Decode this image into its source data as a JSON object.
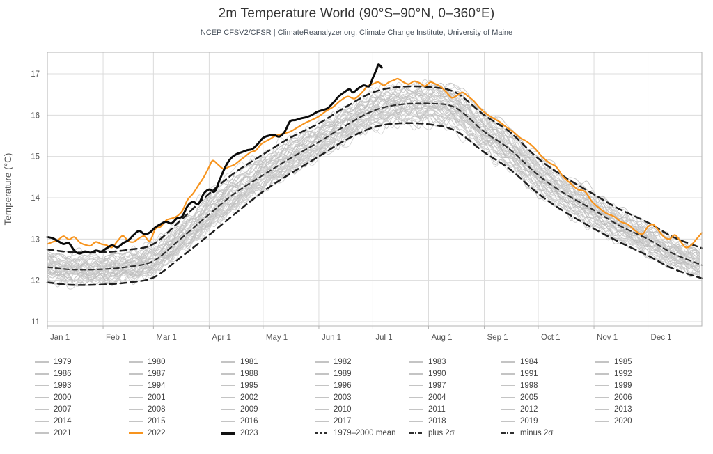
{
  "header": {
    "title": "2m Temperature World (90°S–90°N, 0–360°E)",
    "subtitle": "NCEP CFSV2/CFSR | ClimateReanalyzer.org, Climate Change Institute, University of Maine"
  },
  "colors": {
    "accent_2022": "#F7941E",
    "line_2023": "#0a0a0a",
    "ensemble_grays": [
      "#cfcfcf",
      "#c4c4c4",
      "#d4d4d4",
      "#bdbdbd"
    ],
    "dashed_mean": "#2e2e2e",
    "dashed_sigma": "#1f1f1f",
    "grid": "#dcdcdc",
    "axis_border": "#b3b3b3",
    "axis_text": "#555555"
  },
  "chart_data": {
    "type": "line",
    "title": "2m Temperature World (90°S–90°N, 0–360°E)",
    "subtitle": "NCEP CFSV2/CFSR | ClimateReanalyzer.org, Climate Change Institute, University of Maine",
    "xlabel": "",
    "ylabel": "Temperature (°C)",
    "ylim": [
      10.9,
      17.5
    ],
    "yticks": [
      11,
      12,
      13,
      14,
      15,
      16,
      17
    ],
    "xtick_labels": [
      "Jan 1",
      "Feb 1",
      "Mar 1",
      "Apr 1",
      "May 1",
      "Jun 1",
      "Jul 1",
      "Aug 1",
      "Sep 1",
      "Oct 1",
      "Nov 1",
      "Dec 1"
    ],
    "xtick_days": [
      1,
      32,
      60,
      91,
      121,
      152,
      182,
      213,
      244,
      274,
      305,
      335
    ],
    "grid": true,
    "legend_position": "bottom",
    "ensemble_years": [
      1979,
      1980,
      1981,
      1982,
      1983,
      1984,
      1985,
      1986,
      1987,
      1988,
      1989,
      1990,
      1991,
      1992,
      1993,
      1994,
      1995,
      1996,
      1997,
      1998,
      1999,
      2000,
      2001,
      2002,
      2003,
      2004,
      2005,
      2006,
      2007,
      2008,
      2009,
      2010,
      2011,
      2012,
      2013,
      2014,
      2015,
      2016,
      2017,
      2018,
      2019,
      2020,
      2021
    ],
    "series": [
      {
        "name": "1979-2000 mean",
        "style": "mean",
        "days": [
          1,
          15,
          32,
          46,
          60,
          75,
          91,
          105,
          121,
          136,
          152,
          167,
          182,
          196,
          213,
          228,
          244,
          258,
          274,
          288,
          305,
          319,
          335,
          349,
          365
        ],
        "values": [
          12.32,
          12.26,
          12.27,
          12.33,
          12.47,
          13.0,
          13.6,
          14.1,
          14.55,
          14.95,
          15.35,
          15.75,
          16.1,
          16.25,
          16.28,
          16.18,
          15.6,
          15.18,
          14.55,
          14.12,
          13.7,
          13.33,
          13.0,
          12.65,
          12.37
        ]
      },
      {
        "name": "plus 2σ",
        "style": "sigma",
        "days": [
          1,
          15,
          32,
          46,
          60,
          75,
          91,
          105,
          121,
          136,
          152,
          167,
          182,
          196,
          213,
          228,
          244,
          258,
          274,
          288,
          305,
          319,
          335,
          349,
          365
        ],
        "values": [
          12.75,
          12.68,
          12.68,
          12.74,
          12.88,
          13.45,
          14.1,
          14.6,
          15.05,
          15.45,
          15.8,
          16.2,
          16.55,
          16.68,
          16.68,
          16.55,
          16.0,
          15.6,
          14.95,
          14.52,
          14.08,
          13.73,
          13.4,
          13.05,
          12.78
        ]
      },
      {
        "name": "minus 2σ",
        "style": "sigma",
        "days": [
          1,
          15,
          32,
          46,
          60,
          75,
          91,
          105,
          121,
          136,
          152,
          167,
          182,
          196,
          213,
          228,
          244,
          258,
          274,
          288,
          305,
          319,
          335,
          349,
          365
        ],
        "values": [
          11.95,
          11.89,
          11.9,
          11.95,
          12.07,
          12.55,
          13.1,
          13.6,
          14.15,
          14.58,
          15.0,
          15.4,
          15.7,
          15.8,
          15.78,
          15.62,
          15.1,
          14.7,
          14.1,
          13.68,
          13.25,
          12.93,
          12.6,
          12.28,
          12.05
        ]
      },
      {
        "name": "2022",
        "style": "orange",
        "days": [
          1,
          4,
          7,
          10,
          13,
          16,
          19,
          22,
          25,
          28,
          31,
          34,
          37,
          40,
          43,
          46,
          49,
          52,
          55,
          58,
          61,
          64,
          67,
          70,
          73,
          76,
          79,
          82,
          85,
          88,
          91,
          93,
          96,
          99,
          102,
          105,
          108,
          111,
          114,
          117,
          120,
          124,
          128,
          132,
          136,
          140,
          144,
          148,
          152,
          156,
          160,
          164,
          168,
          172,
          176,
          179,
          182,
          185,
          188,
          191,
          194,
          196,
          199,
          202,
          205,
          208,
          211,
          214,
          217,
          220,
          223,
          226,
          229,
          232,
          235,
          238,
          241,
          244,
          248,
          252,
          256,
          260,
          264,
          268,
          272,
          276,
          280,
          284,
          288,
          292,
          296,
          300,
          304,
          308,
          312,
          316,
          320,
          324,
          328,
          332,
          335,
          338,
          341,
          344,
          347,
          350,
          353,
          356,
          359,
          362,
          365
        ],
        "values": [
          12.88,
          12.93,
          12.98,
          13.07,
          12.99,
          13.05,
          12.92,
          12.86,
          12.84,
          12.93,
          12.88,
          12.85,
          12.8,
          12.95,
          13.08,
          12.95,
          12.93,
          13.02,
          13.07,
          12.95,
          13.24,
          13.3,
          13.45,
          13.5,
          13.55,
          13.68,
          13.95,
          14.1,
          14.3,
          14.5,
          14.75,
          14.9,
          14.8,
          14.7,
          14.75,
          14.8,
          14.9,
          15.0,
          15.1,
          15.15,
          15.3,
          15.4,
          15.5,
          15.55,
          15.6,
          15.7,
          15.8,
          15.88,
          15.97,
          16.1,
          16.2,
          16.35,
          16.45,
          16.4,
          16.55,
          16.7,
          16.75,
          16.8,
          16.72,
          16.8,
          16.85,
          16.88,
          16.8,
          16.75,
          16.82,
          16.78,
          16.7,
          16.8,
          16.75,
          16.68,
          16.55,
          16.42,
          16.48,
          16.55,
          16.45,
          16.35,
          16.2,
          16.07,
          15.95,
          15.85,
          15.72,
          15.6,
          15.45,
          15.35,
          15.2,
          15.0,
          14.85,
          14.75,
          14.5,
          14.35,
          14.2,
          14.15,
          13.9,
          13.75,
          13.62,
          13.55,
          13.42,
          13.35,
          13.2,
          13.12,
          13.3,
          13.35,
          13.2,
          13.05,
          13.0,
          13.1,
          12.95,
          12.8,
          12.85,
          13.0,
          13.15
        ]
      },
      {
        "name": "2023",
        "style": "black",
        "days": [
          1,
          4,
          7,
          10,
          13,
          16,
          19,
          22,
          25,
          28,
          31,
          34,
          37,
          40,
          43,
          46,
          49,
          52,
          55,
          58,
          61,
          64,
          67,
          70,
          73,
          76,
          79,
          82,
          85,
          88,
          91,
          94,
          97,
          100,
          103,
          106,
          109,
          112,
          115,
          118,
          121,
          124,
          127,
          130,
          133,
          136,
          139,
          142,
          145,
          148,
          151,
          154,
          157,
          160,
          163,
          166,
          169,
          171,
          174,
          177,
          180,
          182,
          184,
          185,
          186,
          187
        ],
        "values": [
          13.05,
          13.02,
          12.95,
          12.88,
          12.9,
          12.72,
          12.65,
          12.7,
          12.67,
          12.72,
          12.7,
          12.78,
          12.85,
          12.8,
          12.9,
          12.97,
          13.1,
          13.2,
          13.12,
          13.16,
          13.28,
          13.36,
          13.42,
          13.38,
          13.5,
          13.55,
          13.8,
          13.9,
          13.85,
          14.1,
          14.2,
          14.15,
          14.45,
          14.75,
          14.95,
          15.05,
          15.1,
          15.15,
          15.18,
          15.3,
          15.45,
          15.5,
          15.52,
          15.48,
          15.6,
          15.85,
          15.88,
          15.92,
          15.95,
          16.0,
          16.08,
          16.12,
          16.17,
          16.3,
          16.45,
          16.55,
          16.63,
          16.55,
          16.65,
          16.72,
          16.7,
          16.9,
          17.1,
          17.22,
          17.2,
          17.15
        ]
      }
    ]
  },
  "legend": {
    "items": [
      {
        "label": "1979",
        "swatch": "gray"
      },
      {
        "label": "1980",
        "swatch": "gray"
      },
      {
        "label": "1981",
        "swatch": "gray"
      },
      {
        "label": "1982",
        "swatch": "gray"
      },
      {
        "label": "1983",
        "swatch": "gray"
      },
      {
        "label": "1984",
        "swatch": "gray"
      },
      {
        "label": "1985",
        "swatch": "gray"
      },
      {
        "label": "1986",
        "swatch": "gray"
      },
      {
        "label": "1987",
        "swatch": "gray"
      },
      {
        "label": "1988",
        "swatch": "gray"
      },
      {
        "label": "1989",
        "swatch": "gray"
      },
      {
        "label": "1990",
        "swatch": "gray"
      },
      {
        "label": "1991",
        "swatch": "gray"
      },
      {
        "label": "1992",
        "swatch": "gray"
      },
      {
        "label": "1993",
        "swatch": "gray"
      },
      {
        "label": "1994",
        "swatch": "gray"
      },
      {
        "label": "1995",
        "swatch": "gray"
      },
      {
        "label": "1996",
        "swatch": "gray"
      },
      {
        "label": "1997",
        "swatch": "gray"
      },
      {
        "label": "1998",
        "swatch": "gray"
      },
      {
        "label": "1999",
        "swatch": "gray"
      },
      {
        "label": "2000",
        "swatch": "gray"
      },
      {
        "label": "2001",
        "swatch": "gray"
      },
      {
        "label": "2002",
        "swatch": "gray"
      },
      {
        "label": "2003",
        "swatch": "gray"
      },
      {
        "label": "2004",
        "swatch": "gray"
      },
      {
        "label": "2005",
        "swatch": "gray"
      },
      {
        "label": "2006",
        "swatch": "gray"
      },
      {
        "label": "2007",
        "swatch": "gray"
      },
      {
        "label": "2008",
        "swatch": "gray"
      },
      {
        "label": "2009",
        "swatch": "gray"
      },
      {
        "label": "2010",
        "swatch": "gray"
      },
      {
        "label": "2011",
        "swatch": "gray"
      },
      {
        "label": "2012",
        "swatch": "gray"
      },
      {
        "label": "2013",
        "swatch": "gray"
      },
      {
        "label": "2014",
        "swatch": "gray"
      },
      {
        "label": "2015",
        "swatch": "gray"
      },
      {
        "label": "2016",
        "swatch": "gray"
      },
      {
        "label": "2017",
        "swatch": "gray"
      },
      {
        "label": "2018",
        "swatch": "gray"
      },
      {
        "label": "2019",
        "swatch": "gray"
      },
      {
        "label": "2020",
        "swatch": "gray"
      },
      {
        "label": "2021",
        "swatch": "gray"
      },
      {
        "label": "2022",
        "swatch": "orange"
      },
      {
        "label": "2023",
        "swatch": "black"
      },
      {
        "label": "1979–2000 mean",
        "swatch": "dashed"
      },
      {
        "label": "plus 2σ",
        "swatch": "dashdot"
      },
      {
        "label": "minus 2σ",
        "swatch": "dashdot"
      }
    ]
  }
}
